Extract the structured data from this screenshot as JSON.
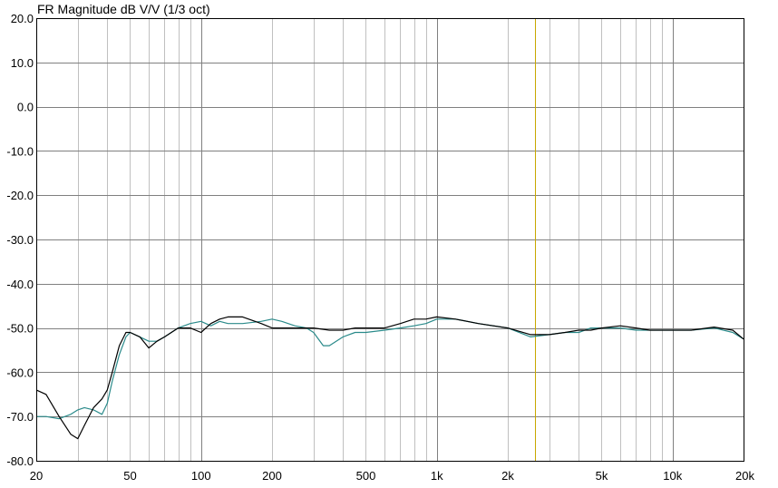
{
  "chart_data": {
    "type": "line",
    "title": "FR Magnitude dB V/V (1/3 oct)",
    "xlabel": "",
    "ylabel": "",
    "x_scale": "log",
    "xlim": [
      20,
      20000
    ],
    "ylim": [
      -80,
      20
    ],
    "x_ticks": [
      {
        "value": 20,
        "label": "20"
      },
      {
        "value": 50,
        "label": "50"
      },
      {
        "value": 100,
        "label": "100"
      },
      {
        "value": 200,
        "label": "200"
      },
      {
        "value": 500,
        "label": "500"
      },
      {
        "value": 1000,
        "label": "1k"
      },
      {
        "value": 2000,
        "label": "2k"
      },
      {
        "value": 5000,
        "label": "5k"
      },
      {
        "value": 10000,
        "label": "10k"
      },
      {
        "value": 20000,
        "label": "20k"
      }
    ],
    "y_ticks": [
      {
        "value": 20,
        "label": "20.0"
      },
      {
        "value": 10,
        "label": "10.0"
      },
      {
        "value": 0,
        "label": "0.0"
      },
      {
        "value": -10,
        "label": "-10.0"
      },
      {
        "value": -20,
        "label": "-20.0"
      },
      {
        "value": -30,
        "label": "-30.0"
      },
      {
        "value": -40,
        "label": "-40.0"
      },
      {
        "value": -50,
        "label": "-50.0"
      },
      {
        "value": -60,
        "label": "-60.0"
      },
      {
        "value": -70,
        "label": "-70.0"
      },
      {
        "value": -80,
        "label": "-80.0"
      }
    ],
    "grid": true,
    "marker_x": 2600,
    "colors": {
      "grid": "#c0c0c0",
      "major_grid": "#808080",
      "marker": "#c8a800",
      "series1": "#000000",
      "series2": "#2a8a8a"
    },
    "series": [
      {
        "name": "",
        "color": "#000000",
        "x": [
          20,
          22,
          25,
          28,
          30,
          32,
          35,
          38,
          40,
          42,
          45,
          48,
          50,
          55,
          60,
          65,
          70,
          80,
          90,
          100,
          110,
          120,
          130,
          150,
          180,
          200,
          250,
          300,
          350,
          400,
          450,
          500,
          600,
          700,
          800,
          900,
          1000,
          1200,
          1500,
          2000,
          2500,
          3000,
          3500,
          4000,
          4500,
          5000,
          6000,
          7000,
          8000,
          10000,
          12000,
          15000,
          18000,
          20000
        ],
        "y": [
          -64,
          -65,
          -70,
          -74,
          -75,
          -72,
          -68,
          -66,
          -64,
          -60,
          -54,
          -51,
          -51,
          -52,
          -54.5,
          -53,
          -52,
          -50,
          -50,
          -51,
          -49,
          -48,
          -47.5,
          -47.5,
          -49,
          -50,
          -50,
          -50,
          -50.5,
          -50.5,
          -50,
          -50,
          -50,
          -49,
          -48,
          -48,
          -47.5,
          -48,
          -49,
          -50,
          -51.5,
          -51.5,
          -51,
          -50.5,
          -50.5,
          -50,
          -49.5,
          -50,
          -50.5,
          -50.5,
          -50.5,
          -49.8,
          -50.5,
          -52.5
        ]
      },
      {
        "name": "",
        "color": "#2a8a8a",
        "x": [
          20,
          22,
          25,
          28,
          30,
          32,
          35,
          38,
          40,
          42,
          45,
          48,
          50,
          55,
          60,
          65,
          70,
          80,
          90,
          100,
          110,
          120,
          130,
          150,
          180,
          200,
          220,
          250,
          280,
          300,
          330,
          350,
          400,
          450,
          500,
          600,
          700,
          800,
          900,
          1000,
          1200,
          1500,
          2000,
          2500,
          3000,
          3500,
          4000,
          4500,
          5000,
          6000,
          7000,
          8000,
          10000,
          12000,
          15000,
          18000,
          20000
        ],
        "y": [
          -70,
          -70,
          -70.5,
          -69.5,
          -68.5,
          -68,
          -68.5,
          -69.5,
          -67,
          -62,
          -56,
          -52,
          -51,
          -52,
          -53,
          -53,
          -52,
          -50,
          -49,
          -48.5,
          -49.5,
          -48.5,
          -49,
          -49,
          -48.5,
          -48,
          -48.5,
          -49.5,
          -50,
          -51,
          -54,
          -54,
          -52,
          -51,
          -51,
          -50.5,
          -50,
          -49.5,
          -49,
          -48,
          -48,
          -49,
          -50,
          -52,
          -51.5,
          -51,
          -51,
          -50,
          -50,
          -50,
          -50.5,
          -50.5,
          -50.5,
          -50.5,
          -50,
          -51,
          -52.5
        ]
      }
    ]
  }
}
